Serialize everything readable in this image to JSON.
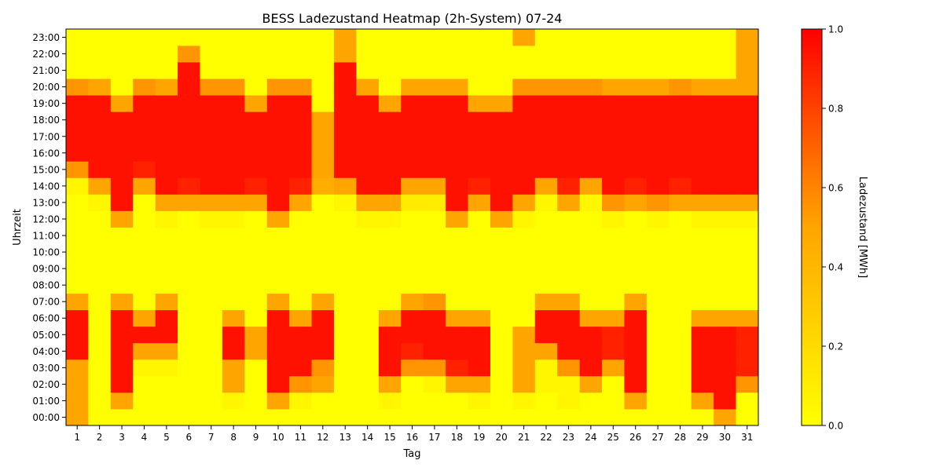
{
  "chart_data": {
    "type": "heatmap",
    "title": "BESS Ladezustand Heatmap (2h-System) 07-24",
    "xlabel": "Tag",
    "ylabel": "Uhrzeit",
    "colorbar_label": "Ladezustand [MWh]",
    "colorbar_ticks": [
      "0.0",
      "0.2",
      "0.4",
      "0.6",
      "0.8",
      "1.0"
    ],
    "vmin": 0.0,
    "vmax": 1.0,
    "colormap": [
      "#ffff00",
      "#ffa500",
      "#ff0000"
    ],
    "x_categories": [
      "1",
      "2",
      "3",
      "4",
      "5",
      "6",
      "7",
      "8",
      "9",
      "10",
      "11",
      "12",
      "13",
      "14",
      "15",
      "16",
      "17",
      "18",
      "19",
      "20",
      "21",
      "22",
      "23",
      "24",
      "25",
      "26",
      "27",
      "28",
      "29",
      "30",
      "31"
    ],
    "y_categories": [
      "00:00",
      "01:00",
      "02:00",
      "03:00",
      "04:00",
      "05:00",
      "06:00",
      "07:00",
      "08:00",
      "09:00",
      "10:00",
      "11:00",
      "12:00",
      "13:00",
      "14:00",
      "15:00",
      "16:00",
      "17:00",
      "18:00",
      "19:00",
      "20:00",
      "21:00",
      "22:00",
      "23:00"
    ],
    "values": [
      [
        0.5,
        0,
        0,
        0,
        0,
        0,
        0,
        0,
        0,
        0,
        0,
        0,
        0,
        0,
        0,
        0,
        0,
        0,
        0,
        0,
        0,
        0,
        0,
        0,
        0,
        0,
        0,
        0,
        0,
        0.5,
        0
      ],
      [
        0.5,
        0,
        0.5,
        0,
        0,
        0,
        0,
        0.05,
        0,
        0.5,
        0.05,
        0,
        0,
        0,
        0.05,
        0,
        0,
        0,
        0.05,
        0,
        0.05,
        0,
        0.05,
        0,
        0,
        0.5,
        0,
        0,
        0.5,
        0.95,
        0
      ],
      [
        0.5,
        0,
        0.95,
        0,
        0,
        0,
        0,
        0.5,
        0,
        0.95,
        0.55,
        0.5,
        0,
        0,
        0.5,
        0,
        0.05,
        0.5,
        0.5,
        0,
        0.5,
        0.05,
        0.05,
        0.5,
        0,
        0.95,
        0,
        0,
        0.95,
        0.95,
        0.55
      ],
      [
        0.5,
        0,
        0.95,
        0.05,
        0.05,
        0,
        0,
        0.5,
        0,
        0.95,
        0.95,
        0.55,
        0,
        0,
        0.95,
        0.55,
        0.55,
        0.9,
        0.95,
        0,
        0.5,
        0.05,
        0.55,
        0.95,
        0.5,
        0.95,
        0,
        0,
        0.95,
        0.95,
        0.9
      ],
      [
        0.95,
        0,
        0.95,
        0.5,
        0.5,
        0,
        0,
        0.95,
        0.5,
        0.95,
        0.95,
        0.95,
        0,
        0,
        0.95,
        0.9,
        0.95,
        0.95,
        0.95,
        0,
        0.5,
        0.5,
        0.95,
        0.95,
        0.9,
        0.95,
        0,
        0,
        0.95,
        0.95,
        0.9
      ],
      [
        0.95,
        0,
        0.95,
        0.95,
        0.95,
        0,
        0,
        0.95,
        0.5,
        0.95,
        0.95,
        0.95,
        0,
        0,
        0.95,
        0.95,
        0.95,
        0.95,
        0.95,
        0,
        0.5,
        0.95,
        0.95,
        0.95,
        0.9,
        0.95,
        0,
        0,
        0.95,
        0.95,
        0.9
      ],
      [
        0.95,
        0,
        0.95,
        0.5,
        0.95,
        0,
        0,
        0.5,
        0,
        0.95,
        0.5,
        0.95,
        0,
        0,
        0.5,
        0.95,
        0.95,
        0.5,
        0.5,
        0,
        0,
        0.95,
        0.95,
        0.5,
        0.5,
        0.95,
        0,
        0,
        0.5,
        0.5,
        0.5
      ],
      [
        0.5,
        0,
        0.5,
        0,
        0.5,
        0,
        0,
        0,
        0,
        0.5,
        0,
        0.5,
        0,
        0,
        0,
        0.5,
        0.55,
        0,
        0,
        0,
        0,
        0.5,
        0.5,
        0,
        0,
        0.5,
        0,
        0,
        0,
        0,
        0
      ],
      [
        0,
        0,
        0,
        0,
        0,
        0,
        0,
        0,
        0,
        0,
        0,
        0,
        0,
        0,
        0,
        0,
        0,
        0,
        0,
        0,
        0,
        0,
        0,
        0,
        0,
        0,
        0,
        0,
        0,
        0,
        0
      ],
      [
        0,
        0,
        0,
        0,
        0,
        0,
        0,
        0,
        0,
        0,
        0,
        0,
        0,
        0,
        0,
        0,
        0,
        0,
        0,
        0,
        0,
        0,
        0,
        0,
        0,
        0,
        0,
        0,
        0,
        0,
        0
      ],
      [
        0,
        0,
        0,
        0,
        0,
        0,
        0,
        0,
        0,
        0,
        0,
        0,
        0,
        0,
        0,
        0,
        0,
        0,
        0,
        0,
        0,
        0,
        0,
        0,
        0,
        0,
        0,
        0,
        0,
        0,
        0
      ],
      [
        0,
        0,
        0,
        0,
        0,
        0,
        0,
        0,
        0,
        0,
        0,
        0,
        0,
        0,
        0,
        0,
        0,
        0,
        0,
        0,
        0,
        0,
        0,
        0,
        0,
        0,
        0,
        0,
        0,
        0,
        0
      ],
      [
        0,
        0,
        0.5,
        0,
        0.05,
        0,
        0.05,
        0.05,
        0,
        0.5,
        0,
        0,
        0,
        0.05,
        0.05,
        0,
        0,
        0.5,
        0,
        0.5,
        0.05,
        0,
        0,
        0,
        0.05,
        0,
        0.05,
        0,
        0.05,
        0.05,
        0.05
      ],
      [
        0,
        0.05,
        0.95,
        0,
        0.5,
        0.5,
        0.5,
        0.5,
        0.5,
        0.95,
        0.5,
        0,
        0.05,
        0.5,
        0.5,
        0.1,
        0.1,
        0.95,
        0.5,
        0.95,
        0.5,
        0.05,
        0.5,
        0.05,
        0.55,
        0.5,
        0.55,
        0.5,
        0.5,
        0.5,
        0.5
      ],
      [
        0.05,
        0.5,
        0.95,
        0.5,
        0.95,
        0.9,
        0.95,
        0.95,
        0.9,
        0.95,
        0.9,
        0.45,
        0.5,
        0.95,
        0.95,
        0.5,
        0.5,
        0.95,
        0.9,
        0.95,
        0.95,
        0.5,
        0.9,
        0.5,
        0.95,
        0.9,
        0.95,
        0.9,
        0.95,
        0.95,
        0.95
      ],
      [
        0.55,
        0.95,
        0.95,
        0.9,
        0.95,
        0.95,
        0.95,
        0.95,
        0.95,
        0.95,
        0.95,
        0.5,
        0.95,
        0.95,
        0.95,
        0.95,
        0.95,
        0.95,
        0.95,
        0.95,
        0.95,
        0.95,
        0.95,
        0.95,
        0.95,
        0.95,
        0.95,
        0.95,
        0.95,
        0.95,
        0.95
      ],
      [
        0.95,
        0.95,
        0.95,
        0.95,
        0.95,
        0.95,
        0.95,
        0.95,
        0.95,
        0.95,
        0.95,
        0.5,
        0.95,
        0.95,
        0.95,
        0.95,
        0.95,
        0.95,
        0.95,
        0.95,
        0.95,
        0.95,
        0.95,
        0.95,
        0.95,
        0.95,
        0.95,
        0.95,
        0.95,
        0.95,
        0.95
      ],
      [
        0.95,
        0.95,
        0.95,
        0.95,
        0.95,
        0.95,
        0.95,
        0.95,
        0.95,
        0.95,
        0.95,
        0.5,
        0.95,
        0.95,
        0.95,
        0.95,
        0.95,
        0.95,
        0.95,
        0.95,
        0.95,
        0.95,
        0.95,
        0.95,
        0.95,
        0.95,
        0.95,
        0.95,
        0.95,
        0.95,
        0.95
      ],
      [
        0.95,
        0.95,
        0.95,
        0.95,
        0.95,
        0.95,
        0.95,
        0.95,
        0.95,
        0.95,
        0.95,
        0.5,
        0.95,
        0.95,
        0.95,
        0.95,
        0.95,
        0.95,
        0.95,
        0.95,
        0.95,
        0.95,
        0.95,
        0.95,
        0.95,
        0.95,
        0.95,
        0.95,
        0.95,
        0.95,
        0.95
      ],
      [
        0.95,
        0.95,
        0.5,
        0.95,
        0.95,
        0.95,
        0.95,
        0.95,
        0.5,
        0.95,
        0.95,
        0,
        0.95,
        0.95,
        0.5,
        0.95,
        0.95,
        0.95,
        0.5,
        0.5,
        0.95,
        0.95,
        0.95,
        0.95,
        0.95,
        0.95,
        0.95,
        0.95,
        0.95,
        0.95,
        0.95
      ],
      [
        0.55,
        0.5,
        0,
        0.55,
        0.5,
        0.95,
        0.55,
        0.55,
        0,
        0.55,
        0.55,
        0,
        0.95,
        0.5,
        0,
        0.5,
        0.5,
        0.5,
        0,
        0,
        0.55,
        0.55,
        0.55,
        0.55,
        0.5,
        0.5,
        0.5,
        0.55,
        0.5,
        0.5,
        0.5
      ],
      [
        0,
        0,
        0,
        0,
        0,
        0.95,
        0,
        0,
        0,
        0,
        0,
        0,
        0.95,
        0,
        0,
        0,
        0,
        0,
        0,
        0,
        0,
        0,
        0,
        0,
        0,
        0,
        0,
        0,
        0,
        0,
        0.5
      ],
      [
        0,
        0,
        0,
        0,
        0,
        0.55,
        0,
        0,
        0,
        0,
        0,
        0,
        0.5,
        0,
        0,
        0,
        0,
        0,
        0,
        0,
        0,
        0,
        0,
        0,
        0,
        0,
        0,
        0,
        0,
        0,
        0.5
      ],
      [
        0,
        0,
        0,
        0,
        0,
        0,
        0,
        0,
        0,
        0,
        0,
        0,
        0.5,
        0,
        0,
        0,
        0,
        0,
        0,
        0,
        0.5,
        0,
        0,
        0,
        0,
        0,
        0,
        0,
        0,
        0,
        0.5
      ]
    ]
  }
}
